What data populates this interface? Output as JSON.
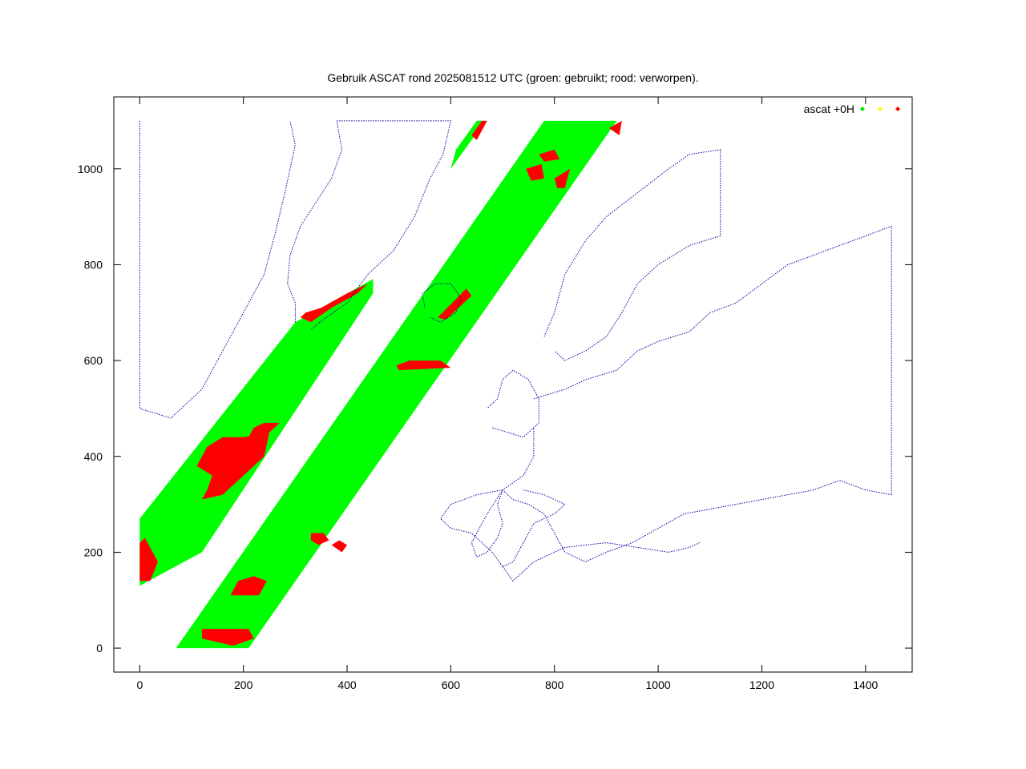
{
  "chart_data": {
    "type": "scatter",
    "title": "Gebruik ASCAT rond 2025081512 UTC (groen: gebruikt; rood: verworpen).",
    "xlabel": "",
    "ylabel": "",
    "xlim": [
      -50,
      1490
    ],
    "ylim": [
      -50,
      1150
    ],
    "x_ticks": [
      0,
      200,
      400,
      600,
      800,
      1000,
      1200,
      1400
    ],
    "y_ticks": [
      0,
      200,
      400,
      600,
      800,
      1000
    ],
    "grid": false,
    "legend": {
      "placement": "top-right",
      "label": "ascat +0H",
      "marker_colors": [
        "#00e600",
        "#ffff00",
        "#ff0000"
      ]
    },
    "colors": {
      "used": "#00ff00",
      "rejected": "#ff0000",
      "coastline": "#0000a0"
    },
    "swaths": [
      {
        "name": "western swath",
        "polygon": [
          [
            0,
            130
          ],
          [
            0,
            270
          ],
          [
            300,
            680
          ],
          [
            450,
            770
          ],
          [
            450,
            740
          ],
          [
            120,
            200
          ]
        ]
      },
      {
        "name": "central swath",
        "polygon": [
          [
            70,
            0
          ],
          [
            210,
            0
          ],
          [
            920,
            1100
          ],
          [
            780,
            1100
          ]
        ]
      },
      {
        "name": "northern tip",
        "polygon": [
          [
            600,
            1000
          ],
          [
            610,
            1040
          ],
          [
            650,
            1100
          ],
          [
            670,
            1100
          ],
          [
            640,
            1060
          ]
        ]
      }
    ],
    "rejected_regions": [
      {
        "polygon": [
          [
            0,
            140
          ],
          [
            20,
            140
          ],
          [
            35,
            180
          ],
          [
            20,
            210
          ],
          [
            10,
            230
          ],
          [
            0,
            220
          ]
        ]
      },
      {
        "polygon": [
          [
            120,
            310
          ],
          [
            160,
            320
          ],
          [
            200,
            360
          ],
          [
            240,
            400
          ],
          [
            250,
            450
          ],
          [
            200,
            440
          ],
          [
            160,
            440
          ],
          [
            130,
            420
          ],
          [
            110,
            380
          ],
          [
            140,
            360
          ],
          [
            130,
            330
          ]
        ]
      },
      {
        "polygon": [
          [
            210,
            440
          ],
          [
            250,
            450
          ],
          [
            270,
            470
          ],
          [
            240,
            470
          ],
          [
            220,
            460
          ]
        ]
      },
      {
        "polygon": [
          [
            120,
            20
          ],
          [
            180,
            5
          ],
          [
            220,
            20
          ],
          [
            210,
            40
          ],
          [
            160,
            40
          ],
          [
            120,
            40
          ]
        ]
      },
      {
        "polygon": [
          [
            175,
            110
          ],
          [
            230,
            110
          ],
          [
            245,
            140
          ],
          [
            220,
            150
          ],
          [
            190,
            140
          ]
        ]
      },
      {
        "polygon": [
          [
            330,
            240
          ],
          [
            355,
            240
          ],
          [
            365,
            225
          ],
          [
            345,
            215
          ],
          [
            330,
            225
          ]
        ]
      },
      {
        "polygon": [
          [
            370,
            215
          ],
          [
            390,
            200
          ],
          [
            400,
            215
          ],
          [
            385,
            225
          ]
        ]
      },
      {
        "polygon": [
          [
            500,
            580
          ],
          [
            600,
            585
          ],
          [
            580,
            600
          ],
          [
            520,
            600
          ],
          [
            495,
            590
          ]
        ]
      },
      {
        "polygon": [
          [
            590,
            685
          ],
          [
            640,
            735
          ],
          [
            630,
            750
          ],
          [
            575,
            690
          ]
        ]
      },
      {
        "polygon": [
          [
            310,
            690
          ],
          [
            330,
            680
          ],
          [
            370,
            710
          ],
          [
            420,
            740
          ],
          [
            440,
            760
          ],
          [
            400,
            740
          ],
          [
            350,
            710
          ],
          [
            320,
            700
          ]
        ]
      },
      {
        "polygon": [
          [
            745,
            1000
          ],
          [
            775,
            1010
          ],
          [
            780,
            980
          ],
          [
            755,
            975
          ]
        ]
      },
      {
        "polygon": [
          [
            770,
            1030
          ],
          [
            800,
            1040
          ],
          [
            810,
            1020
          ],
          [
            780,
            1015
          ]
        ]
      },
      {
        "polygon": [
          [
            650,
            1060
          ],
          [
            670,
            1100
          ],
          [
            660,
            1100
          ],
          [
            640,
            1070
          ]
        ]
      },
      {
        "polygon": [
          [
            800,
            980
          ],
          [
            830,
            1000
          ],
          [
            820,
            960
          ],
          [
            805,
            960
          ]
        ]
      },
      {
        "polygon": [
          [
            905,
            1085
          ],
          [
            930,
            1100
          ],
          [
            925,
            1070
          ]
        ]
      }
    ],
    "coastlines": [
      {
        "name": "greenland",
        "points": [
          [
            300,
            680
          ],
          [
            300,
            720
          ],
          [
            285,
            760
          ],
          [
            290,
            820
          ],
          [
            310,
            880
          ],
          [
            340,
            930
          ],
          [
            370,
            980
          ],
          [
            390,
            1040
          ],
          [
            380,
            1100
          ],
          [
            600,
            1100
          ],
          [
            585,
            1030
          ],
          [
            560,
            980
          ],
          [
            530,
            900
          ],
          [
            490,
            830
          ],
          [
            440,
            780
          ],
          [
            400,
            720
          ],
          [
            360,
            690
          ],
          [
            330,
            665
          ]
        ]
      },
      {
        "name": "iceland",
        "points": [
          [
            560,
            690
          ],
          [
            580,
            680
          ],
          [
            610,
            700
          ],
          [
            620,
            730
          ],
          [
            600,
            760
          ],
          [
            570,
            760
          ],
          [
            545,
            740
          ],
          [
            550,
            710
          ]
        ]
      },
      {
        "name": "arctic-canada",
        "points": [
          [
            0,
            1100
          ],
          [
            0,
            500
          ],
          [
            60,
            480
          ],
          [
            120,
            540
          ],
          [
            160,
            620
          ],
          [
            200,
            700
          ],
          [
            240,
            780
          ],
          [
            260,
            860
          ],
          [
            280,
            950
          ],
          [
            300,
            1050
          ],
          [
            290,
            1100
          ]
        ]
      },
      {
        "name": "scandinavia",
        "points": [
          [
            780,
            650
          ],
          [
            800,
            700
          ],
          [
            820,
            780
          ],
          [
            860,
            850
          ],
          [
            900,
            900
          ],
          [
            960,
            950
          ],
          [
            1020,
            1000
          ],
          [
            1060,
            1030
          ],
          [
            1120,
            1040
          ],
          [
            1120,
            860
          ],
          [
            1060,
            840
          ],
          [
            1000,
            800
          ],
          [
            960,
            760
          ],
          [
            930,
            700
          ],
          [
            900,
            650
          ],
          [
            860,
            620
          ],
          [
            820,
            600
          ],
          [
            800,
            620
          ]
        ]
      },
      {
        "name": "british-isles",
        "points": [
          [
            680,
            460
          ],
          [
            710,
            450
          ],
          [
            740,
            440
          ],
          [
            770,
            470
          ],
          [
            770,
            520
          ],
          [
            750,
            560
          ],
          [
            720,
            580
          ],
          [
            700,
            560
          ],
          [
            690,
            520
          ],
          [
            670,
            500
          ]
        ]
      },
      {
        "name": "europe-mainland",
        "points": [
          [
            760,
            520
          ],
          [
            820,
            540
          ],
          [
            860,
            560
          ],
          [
            920,
            580
          ],
          [
            960,
            620
          ],
          [
            1000,
            640
          ],
          [
            1060,
            660
          ],
          [
            1100,
            700
          ],
          [
            1150,
            720
          ],
          [
            1200,
            760
          ],
          [
            1250,
            800
          ],
          [
            1300,
            820
          ],
          [
            1350,
            840
          ],
          [
            1400,
            860
          ],
          [
            1450,
            880
          ],
          [
            1450,
            320
          ],
          [
            1400,
            330
          ],
          [
            1350,
            350
          ],
          [
            1300,
            330
          ],
          [
            1250,
            320
          ],
          [
            1200,
            310
          ],
          [
            1150,
            300
          ],
          [
            1100,
            290
          ],
          [
            1050,
            280
          ],
          [
            1000,
            250
          ],
          [
            950,
            220
          ],
          [
            900,
            200
          ],
          [
            860,
            180
          ],
          [
            820,
            200
          ],
          [
            800,
            240
          ],
          [
            780,
            280
          ],
          [
            750,
            300
          ],
          [
            720,
            310
          ],
          [
            700,
            330
          ],
          [
            690,
            300
          ],
          [
            700,
            260
          ],
          [
            690,
            230
          ],
          [
            670,
            200
          ],
          [
            650,
            190
          ],
          [
            640,
            220
          ],
          [
            670,
            280
          ],
          [
            700,
            330
          ],
          [
            740,
            360
          ],
          [
            760,
            400
          ],
          [
            760,
            460
          ]
        ]
      },
      {
        "name": "iberia",
        "points": [
          [
            700,
            330
          ],
          [
            650,
            320
          ],
          [
            600,
            300
          ],
          [
            580,
            270
          ],
          [
            600,
            250
          ],
          [
            640,
            240
          ],
          [
            680,
            200
          ],
          [
            700,
            170
          ],
          [
            720,
            180
          ],
          [
            740,
            220
          ],
          [
            760,
            260
          ],
          [
            800,
            280
          ],
          [
            820,
            300
          ],
          [
            780,
            320
          ],
          [
            740,
            330
          ]
        ]
      },
      {
        "name": "north-africa",
        "points": [
          [
            700,
            170
          ],
          [
            720,
            140
          ],
          [
            760,
            180
          ],
          [
            820,
            210
          ],
          [
            900,
            220
          ],
          [
            960,
            210
          ],
          [
            1020,
            200
          ],
          [
            1060,
            210
          ],
          [
            1080,
            220
          ]
        ]
      }
    ]
  }
}
